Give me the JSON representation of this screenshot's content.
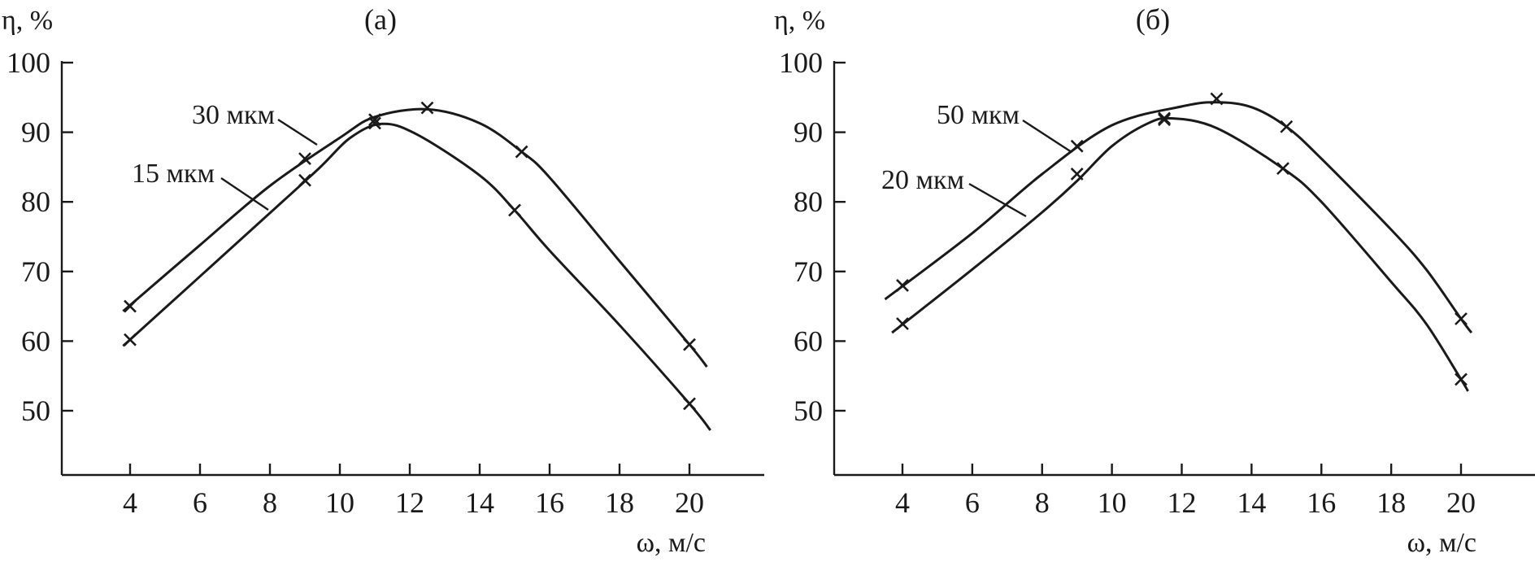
{
  "chart_data": [
    {
      "type": "line",
      "title": "(a)",
      "xlabel": "ω, м/с",
      "ylabel": "η, %",
      "xticks": [
        4,
        6,
        8,
        10,
        12,
        14,
        16,
        18,
        20
      ],
      "yticks": [
        50,
        60,
        70,
        80,
        90,
        100
      ],
      "xlim": [
        2,
        22
      ],
      "ylim": [
        41,
        100
      ],
      "grid": false,
      "legend": "none",
      "series": [
        {
          "name": "30 мкм",
          "points": [
            [
              4,
              65
            ],
            [
              9,
              86.2
            ],
            [
              11,
              91.8
            ],
            [
              12.5,
              93.5
            ],
            [
              15.2,
              87.2
            ],
            [
              20,
              59.5
            ]
          ],
          "curve": [
            [
              3.8,
              64.3
            ],
            [
              6,
              73.8
            ],
            [
              8,
              82.3
            ],
            [
              10,
              89.2
            ],
            [
              11,
              92.2
            ],
            [
              12.5,
              93.3
            ],
            [
              14,
              91.3
            ],
            [
              15.2,
              87.2
            ],
            [
              16,
              83.5
            ],
            [
              18,
              71.5
            ],
            [
              20,
              59.5
            ],
            [
              20.5,
              56.3
            ]
          ]
        },
        {
          "name": "15 мкм",
          "points": [
            [
              4,
              60.2
            ],
            [
              9,
              83.1
            ],
            [
              11,
              91.3
            ],
            [
              15,
              78.8
            ],
            [
              20,
              51
            ]
          ],
          "curve": [
            [
              3.8,
              59.3
            ],
            [
              6,
              69.3
            ],
            [
              8,
              78.4
            ],
            [
              9.4,
              84.8
            ],
            [
              10.3,
              89.2
            ],
            [
              11.2,
              91.2
            ],
            [
              12.2,
              89.7
            ],
            [
              14,
              83.8
            ],
            [
              15,
              78.8
            ],
            [
              16,
              73
            ],
            [
              18,
              62.3
            ],
            [
              20,
              51
            ],
            [
              20.6,
              47.2
            ]
          ]
        }
      ]
    },
    {
      "type": "line",
      "title": "(б)",
      "xlabel": "ω, м/с",
      "ylabel": "η, %",
      "xticks": [
        4,
        6,
        8,
        10,
        12,
        14,
        16,
        18,
        20
      ],
      "yticks": [
        50,
        60,
        70,
        80,
        90,
        100
      ],
      "xlim": [
        2,
        22
      ],
      "ylim": [
        41,
        100
      ],
      "grid": false,
      "legend": "none",
      "series": [
        {
          "name": "50 мкм",
          "points": [
            [
              4,
              68
            ],
            [
              9,
              88
            ],
            [
              11.5,
              92
            ],
            [
              13,
              94.8
            ],
            [
              15,
              90.8
            ],
            [
              20,
              63.2
            ]
          ],
          "curve": [
            [
              3.5,
              66
            ],
            [
              6,
              75.5
            ],
            [
              8,
              84
            ],
            [
              10,
              91
            ],
            [
              12,
              93.7
            ],
            [
              13,
              94.3
            ],
            [
              14,
              93.6
            ],
            [
              15,
              90.8
            ],
            [
              16,
              86.2
            ],
            [
              18,
              76
            ],
            [
              19,
              70.3
            ],
            [
              20,
              63.2
            ],
            [
              20.3,
              61.2
            ]
          ]
        },
        {
          "name": "20 мкм",
          "points": [
            [
              4,
              62.5
            ],
            [
              9,
              84
            ],
            [
              11.5,
              91.8
            ],
            [
              14.9,
              84.8
            ],
            [
              20,
              54.5
            ]
          ],
          "curve": [
            [
              3.7,
              61.2
            ],
            [
              6,
              70.3
            ],
            [
              8,
              78.5
            ],
            [
              9,
              83
            ],
            [
              10,
              88
            ],
            [
              11,
              91.2
            ],
            [
              11.7,
              92
            ],
            [
              13,
              90.6
            ],
            [
              14.9,
              84.8
            ],
            [
              16,
              80
            ],
            [
              18,
              68.5
            ],
            [
              19,
              62.5
            ],
            [
              20,
              54.5
            ],
            [
              20.2,
              52.8
            ]
          ]
        }
      ]
    }
  ],
  "labels": [
    {
      "text": "30 мкм"
    },
    {
      "text": "15 мкм"
    },
    {
      "text": "50 мкм"
    },
    {
      "text": "20 мкм"
    }
  ]
}
